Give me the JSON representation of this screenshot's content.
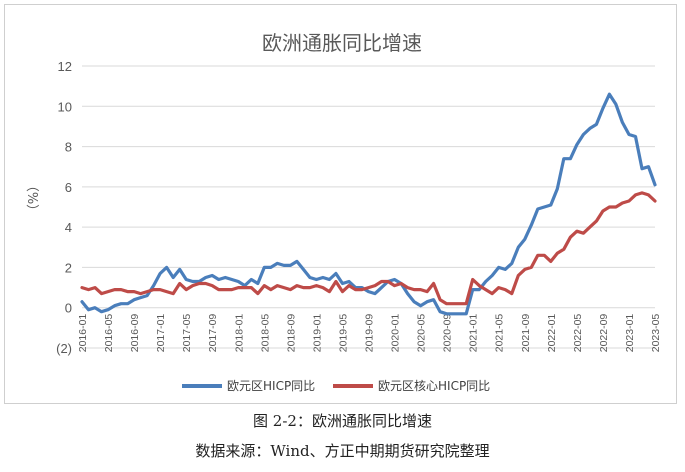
{
  "caption": "图 2-2：欧洲通胀同比增速",
  "source": "数据来源：Wind、方正中期期货研究院整理",
  "chart_data": {
    "type": "line",
    "title": "欧洲通胀同比增速",
    "ylabel": "（%）",
    "ylim": [
      -2,
      12
    ],
    "ytick_labels": [
      "(2)",
      "0",
      "2",
      "4",
      "6",
      "8",
      "10",
      "12"
    ],
    "ytick_values": [
      -2,
      0,
      2,
      4,
      6,
      8,
      10,
      12
    ],
    "xtick_labels": [
      "2016-01",
      "2016-05",
      "2016-09",
      "2017-01",
      "2017-05",
      "2017-09",
      "2018-01",
      "2018-05",
      "2018-09",
      "2019-01",
      "2019-05",
      "2019-09",
      "2020-01",
      "2020-05",
      "2020-09",
      "2021-01",
      "2021-05",
      "2021-09",
      "2022-01",
      "2022-05",
      "2022-09",
      "2023-01",
      "2023-05"
    ],
    "grid": true,
    "legend_position": "bottom",
    "colors": {
      "series1": "#4a7ebb",
      "series2": "#be4b48",
      "neg_tick": "#c00000"
    },
    "x": [
      "2016-01",
      "2016-02",
      "2016-03",
      "2016-04",
      "2016-05",
      "2016-06",
      "2016-07",
      "2016-08",
      "2016-09",
      "2016-10",
      "2016-11",
      "2016-12",
      "2017-01",
      "2017-02",
      "2017-03",
      "2017-04",
      "2017-05",
      "2017-06",
      "2017-07",
      "2017-08",
      "2017-09",
      "2017-10",
      "2017-11",
      "2017-12",
      "2018-01",
      "2018-02",
      "2018-03",
      "2018-04",
      "2018-05",
      "2018-06",
      "2018-07",
      "2018-08",
      "2018-09",
      "2018-10",
      "2018-11",
      "2018-12",
      "2019-01",
      "2019-02",
      "2019-03",
      "2019-04",
      "2019-05",
      "2019-06",
      "2019-07",
      "2019-08",
      "2019-09",
      "2019-10",
      "2019-11",
      "2019-12",
      "2020-01",
      "2020-02",
      "2020-03",
      "2020-04",
      "2020-05",
      "2020-06",
      "2020-07",
      "2020-08",
      "2020-09",
      "2020-10",
      "2020-11",
      "2020-12",
      "2021-01",
      "2021-02",
      "2021-03",
      "2021-04",
      "2021-05",
      "2021-06",
      "2021-07",
      "2021-08",
      "2021-09",
      "2021-10",
      "2021-11",
      "2021-12",
      "2022-01",
      "2022-02",
      "2022-03",
      "2022-04",
      "2022-05",
      "2022-06",
      "2022-07",
      "2022-08",
      "2022-09",
      "2022-10",
      "2022-11",
      "2022-12",
      "2023-01",
      "2023-02",
      "2023-03",
      "2023-04",
      "2023-05"
    ],
    "series": [
      {
        "name": "欧元区HICP同比",
        "values": [
          0.3,
          -0.1,
          0.0,
          -0.2,
          -0.1,
          0.1,
          0.2,
          0.2,
          0.4,
          0.5,
          0.6,
          1.1,
          1.7,
          2.0,
          1.5,
          1.9,
          1.4,
          1.3,
          1.3,
          1.5,
          1.6,
          1.4,
          1.5,
          1.4,
          1.3,
          1.1,
          1.4,
          1.2,
          2.0,
          2.0,
          2.2,
          2.1,
          2.1,
          2.3,
          1.9,
          1.5,
          1.4,
          1.5,
          1.4,
          1.7,
          1.2,
          1.3,
          1.0,
          1.0,
          0.8,
          0.7,
          1.0,
          1.3,
          1.4,
          1.2,
          0.7,
          0.3,
          0.1,
          0.3,
          0.4,
          -0.2,
          -0.3,
          -0.3,
          -0.3,
          -0.3,
          0.9,
          0.9,
          1.3,
          1.6,
          2.0,
          1.9,
          2.2,
          3.0,
          3.4,
          4.1,
          4.9,
          5.0,
          5.1,
          5.9,
          7.4,
          7.4,
          8.1,
          8.6,
          8.9,
          9.1,
          9.9,
          10.6,
          10.1,
          9.2,
          8.6,
          8.5,
          6.9,
          7.0,
          6.1
        ]
      },
      {
        "name": "欧元区核心HICP同比",
        "values": [
          1.0,
          0.9,
          1.0,
          0.7,
          0.8,
          0.9,
          0.9,
          0.8,
          0.8,
          0.7,
          0.8,
          0.9,
          0.9,
          0.8,
          0.7,
          1.2,
          0.9,
          1.1,
          1.2,
          1.2,
          1.1,
          0.9,
          0.9,
          0.9,
          1.0,
          1.0,
          1.0,
          0.7,
          1.1,
          0.9,
          1.1,
          1.0,
          0.9,
          1.1,
          1.0,
          1.0,
          1.1,
          1.0,
          0.8,
          1.3,
          0.8,
          1.1,
          0.9,
          0.9,
          1.0,
          1.1,
          1.3,
          1.3,
          1.1,
          1.2,
          1.0,
          0.9,
          0.9,
          0.8,
          1.2,
          0.4,
          0.2,
          0.2,
          0.2,
          0.2,
          1.4,
          1.1,
          0.9,
          0.7,
          1.0,
          0.9,
          0.7,
          1.6,
          1.9,
          2.0,
          2.6,
          2.6,
          2.3,
          2.7,
          2.9,
          3.5,
          3.8,
          3.7,
          4.0,
          4.3,
          4.8,
          5.0,
          5.0,
          5.2,
          5.3,
          5.6,
          5.7,
          5.6,
          5.3
        ]
      }
    ]
  }
}
